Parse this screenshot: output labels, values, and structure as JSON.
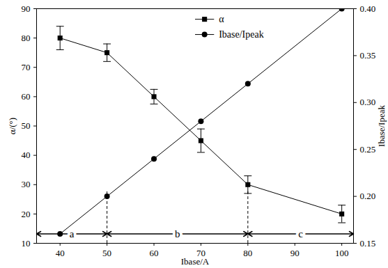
{
  "chart_data": {
    "type": "line",
    "xlabel": "Ibase/A",
    "ylabel": "α/(°)",
    "y2label": "Ibase/Ipeak",
    "x": [
      40,
      50,
      60,
      70,
      80,
      100
    ],
    "xlim": [
      35,
      102.5
    ],
    "xticks": [
      40,
      50,
      60,
      70,
      80,
      90,
      100
    ],
    "ylim": [
      10,
      90
    ],
    "yticks": [
      10,
      20,
      30,
      40,
      50,
      60,
      70,
      80,
      90
    ],
    "y2lim": [
      0.15,
      0.4
    ],
    "y2ticks": [
      {
        "value": 0.15,
        "label": "0.15"
      },
      {
        "value": 0.2,
        "label": "0.20"
      },
      {
        "value": 0.25,
        "label": "0.25"
      },
      {
        "value": 0.3,
        "label": "0.30"
      },
      {
        "value": 0.35,
        "label": "0.35"
      },
      {
        "value": 0.4,
        "label": "0.40"
      }
    ],
    "legend": "top",
    "grid": false,
    "series": [
      {
        "name": "α",
        "color": "#000000",
        "marker": "square",
        "line_style": "solid",
        "values": [
          80,
          75,
          60,
          45,
          30,
          20
        ],
        "errors": [
          4,
          3,
          2.5,
          4,
          3,
          3
        ]
      },
      {
        "name": "Ibase/Ipeak",
        "axis": "y2",
        "color": "#000000",
        "marker": "circle",
        "line_style": "solid",
        "values": [
          0.16,
          0.2,
          0.24,
          0.28,
          0.32,
          0.4
        ]
      }
    ],
    "regions": [
      {
        "label": "a",
        "from": 35,
        "to": 50
      },
      {
        "label": "b",
        "from": 50,
        "to": 80
      },
      {
        "label": "c",
        "from": 80,
        "to": 102.5
      }
    ]
  }
}
